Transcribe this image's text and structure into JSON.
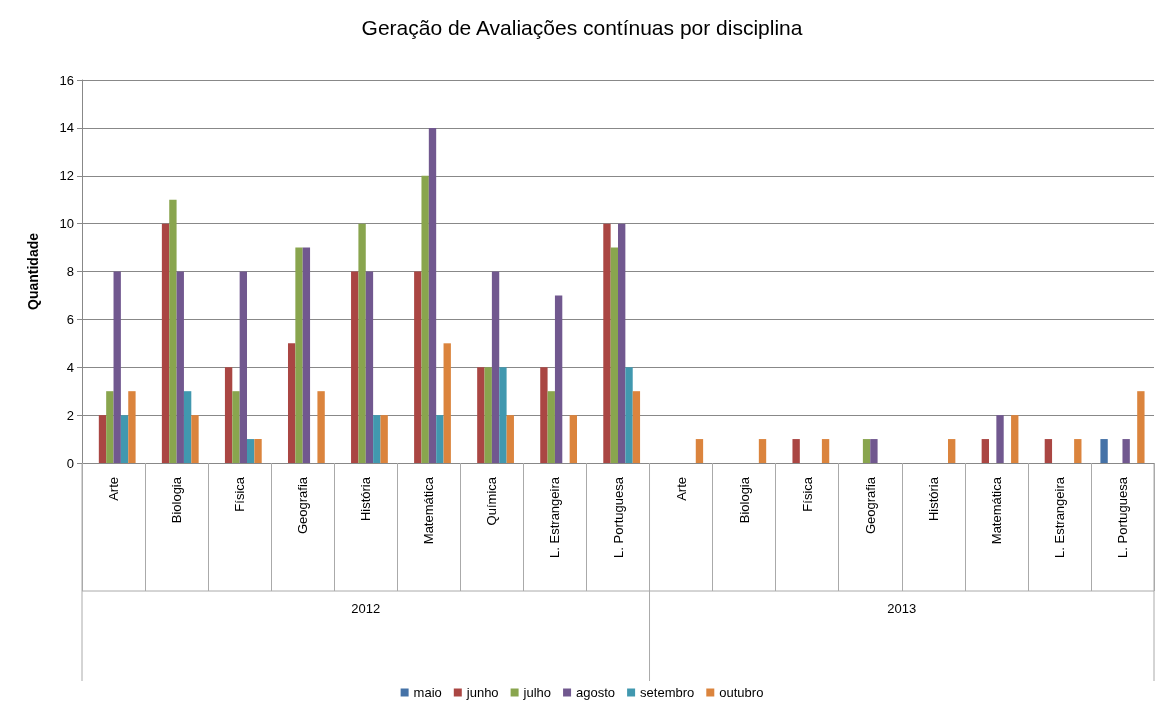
{
  "chart_data": {
    "type": "bar",
    "title": "Geração de Avaliações contínuas por disciplina",
    "ylabel": "Quantidade",
    "categories": [
      "Arte",
      "Biologia",
      "Física",
      "Geografia",
      "História",
      "Matemática",
      "Química",
      "L. Estrangeira",
      "L. Portuguesa",
      "Arte",
      "Biologia",
      "Física",
      "Geografia",
      "História",
      "Matemática",
      "L. Estrangeira",
      "L. Portuguesa"
    ],
    "annotations": [
      "2012",
      "2013"
    ],
    "series": [
      {
        "name": "maio",
        "color": "#4572a7",
        "values": [
          null,
          null,
          null,
          null,
          null,
          null,
          null,
          null,
          null,
          null,
          null,
          null,
          null,
          null,
          null,
          null,
          1
        ]
      },
      {
        "name": "junho",
        "color": "#aa4643",
        "values": [
          2,
          10,
          4,
          5,
          8,
          8,
          4,
          4,
          10,
          null,
          null,
          1,
          null,
          null,
          1,
          1,
          null
        ]
      },
      {
        "name": "julho",
        "color": "#89a54e",
        "values": [
          3,
          11,
          3,
          9,
          10,
          12,
          4,
          3,
          9,
          null,
          null,
          null,
          1,
          null,
          null,
          null,
          null
        ]
      },
      {
        "name": "agosto",
        "color": "#71588f",
        "values": [
          8,
          8,
          8,
          9,
          8,
          14,
          8,
          7,
          10,
          null,
          null,
          null,
          1,
          null,
          2,
          null,
          1
        ]
      },
      {
        "name": "setembro",
        "color": "#4198af",
        "values": [
          2,
          3,
          1,
          null,
          2,
          2,
          4,
          null,
          4,
          null,
          null,
          null,
          null,
          null,
          null,
          null,
          null
        ]
      },
      {
        "name": "outubro",
        "color": "#db843d",
        "values": [
          3,
          2,
          1,
          3,
          2,
          5,
          2,
          2,
          3,
          1,
          1,
          1,
          null,
          1,
          2,
          1,
          3
        ]
      }
    ],
    "ylim": [
      0,
      16
    ],
    "yticks": [
      0,
      2,
      4,
      6,
      8,
      10,
      12,
      14,
      16
    ],
    "grid": "y",
    "legend": "bottom"
  }
}
